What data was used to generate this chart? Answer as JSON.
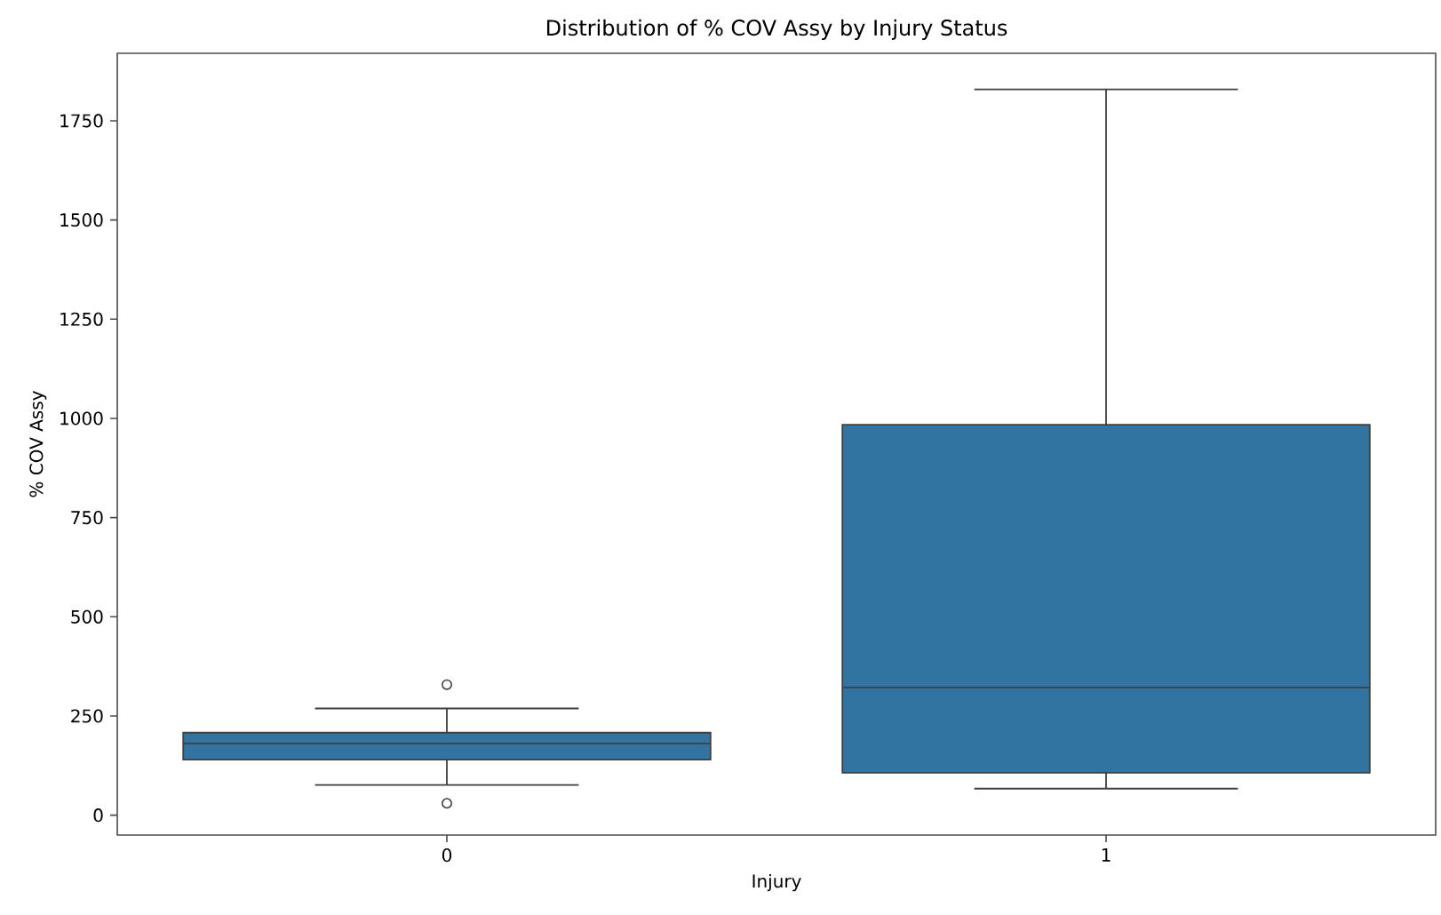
{
  "chart_data": {
    "type": "box",
    "title": "Distribution of % COV Assy by Injury Status",
    "xlabel": "Injury",
    "ylabel": "% COV Assy",
    "categories": [
      "0",
      "1"
    ],
    "boxes": [
      {
        "low": 76,
        "q1": 140,
        "median": 181,
        "q3": 208,
        "high": 269,
        "outliers": [
          329,
          30
        ]
      },
      {
        "low": 67,
        "q1": 107,
        "median": 322,
        "q3": 984,
        "high": 1829
      }
    ],
    "color": "#3274a1",
    "ylim": [
      -50,
      1920
    ],
    "yticks": [
      0,
      250,
      500,
      750,
      1000,
      1250,
      1500,
      1750
    ]
  }
}
